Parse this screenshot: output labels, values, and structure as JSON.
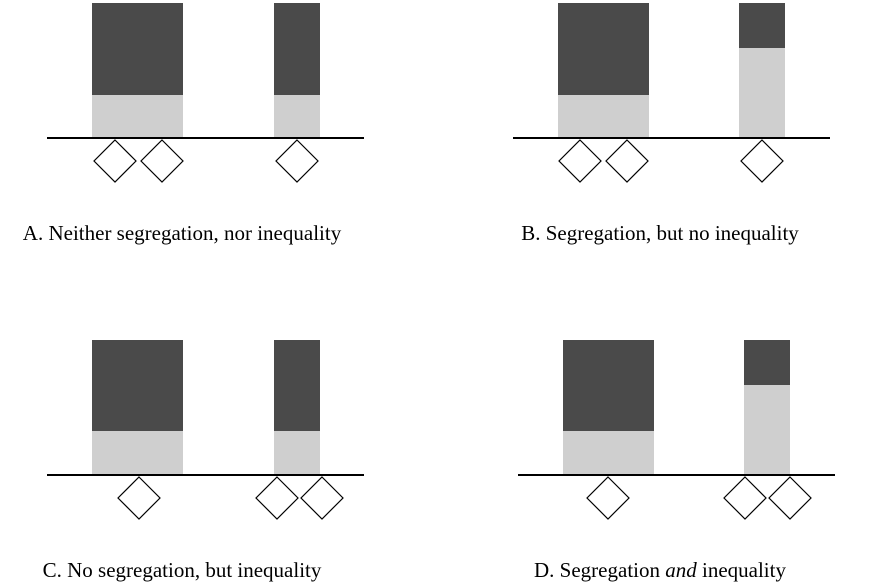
{
  "panels": [
    {
      "caption": "A. Neither segregation, nor inequality"
    },
    {
      "caption": "B. Segregation, but no inequality"
    },
    {
      "caption": "C. No segregation, but inequality"
    },
    {
      "caption_parts": [
        "D. Segregation ",
        "and",
        " inequality"
      ]
    }
  ]
}
